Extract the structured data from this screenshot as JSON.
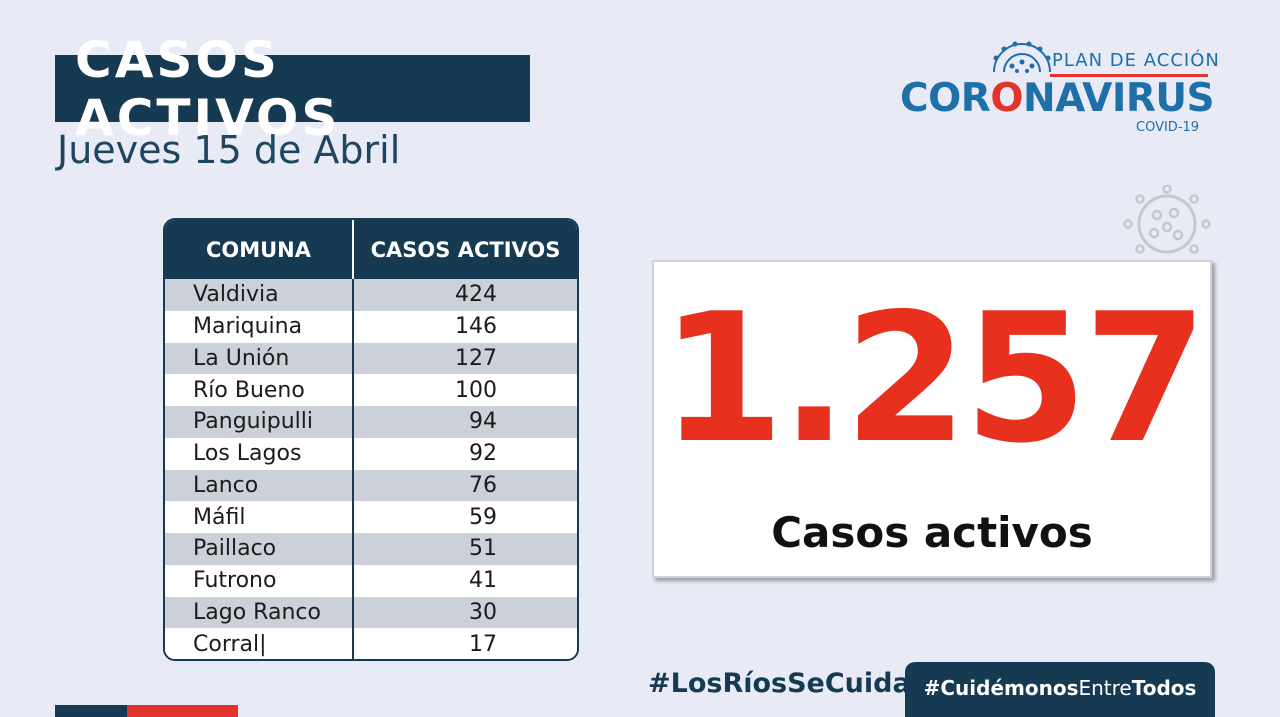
{
  "header": {
    "title": "CASOS ACTIVOS",
    "date": "Jueves 15 de Abril"
  },
  "logo": {
    "top_line": "PLAN DE ACCIÓN",
    "main_pre": "CORONAVIRUS",
    "sub": "COVID-19",
    "icon": "virus-icon"
  },
  "table": {
    "headers": [
      "COMUNA",
      "CASOS ACTIVOS"
    ],
    "rows": [
      {
        "comuna": "Valdivia",
        "casos": "424"
      },
      {
        "comuna": "Mariquina",
        "casos": "146"
      },
      {
        "comuna": "La Unión",
        "casos": "127"
      },
      {
        "comuna": "Río Bueno",
        "casos": "100"
      },
      {
        "comuna": "Panguipulli",
        "casos": "94"
      },
      {
        "comuna": "Los Lagos",
        "casos": "92"
      },
      {
        "comuna": "Lanco",
        "casos": "76"
      },
      {
        "comuna": "Máfil",
        "casos": "59"
      },
      {
        "comuna": "Paillaco",
        "casos": "51"
      },
      {
        "comuna": "Futrono",
        "casos": "41"
      },
      {
        "comuna": "Lago Ranco",
        "casos": "30"
      },
      {
        "comuna": "Corral|",
        "casos": "17"
      }
    ]
  },
  "total": {
    "value": "1.257",
    "label": "Casos activos"
  },
  "footer": {
    "hashtag1": "#LosRíosSeCuida",
    "hashtag2_bold1": "#Cuidémonos",
    "hashtag2_reg": "Entre",
    "hashtag2_bold2": "Todos"
  },
  "colors": {
    "navy": "#163a52",
    "red": "#e3342c",
    "blue": "#1f6fa8",
    "background": "#e8eaf6"
  }
}
